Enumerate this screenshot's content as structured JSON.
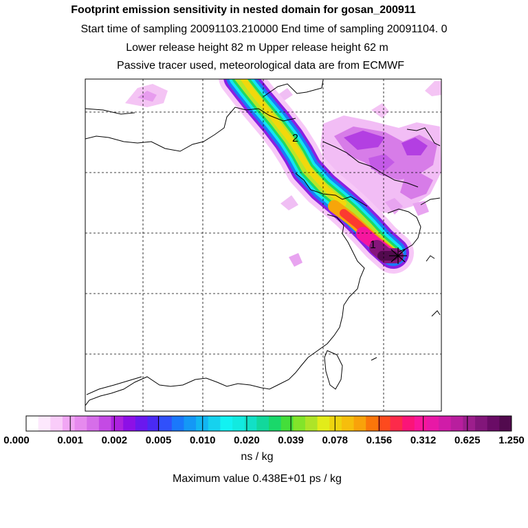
{
  "header": {
    "title": "Footprint emission sensitivity in nested domain for gosan_200911",
    "sampling_line": "Start time of sampling 20091103.210000      End time of sampling 20091104.     0",
    "release_line": "Lower release height   82 m          Upper release height   62 m",
    "tracer_line": "Passive tracer used, meteorological data are from ECMWF"
  },
  "map": {
    "trajectory_markers": [
      "1",
      "2"
    ],
    "receptor_marker": "star",
    "colors": {
      "coastline": "#000000",
      "gridline": "#000000",
      "plume_core": "#5a0a3e"
    }
  },
  "colorbar": {
    "labels": [
      "0.000",
      "0.001",
      "0.002",
      "0.005",
      "0.010",
      "0.020",
      "0.039",
      "0.078",
      "0.156",
      "0.312",
      "0.625",
      "1.250"
    ],
    "colors": [
      "#ffffff",
      "#fde8fd",
      "#f9ccf9",
      "#f1a6f4",
      "#e68aee",
      "#d66ee9",
      "#c44ae4",
      "#ad22df",
      "#8d10e6",
      "#6a18ee",
      "#4a2af4",
      "#3050fb",
      "#1a78fb",
      "#1498f6",
      "#12b6f2",
      "#16d2ee",
      "#12f2f2",
      "#12eae0",
      "#12e0c6",
      "#12d89c",
      "#1ad86a",
      "#44de3a",
      "#82e42a",
      "#aee428",
      "#e2ec1a",
      "#eed40e",
      "#f6be0c",
      "#f9a20a",
      "#fb760a",
      "#fd4a1e",
      "#fd2a4a",
      "#fb1478",
      "#f9169a",
      "#e818a6",
      "#d01ca8",
      "#b81e9e",
      "#9c1e8c",
      "#82167a",
      "#6a0c66",
      "#520a4e"
    ],
    "unit": "ns / kg",
    "max_value_text": "Maximum value  0.438E+01 ps / kg"
  }
}
